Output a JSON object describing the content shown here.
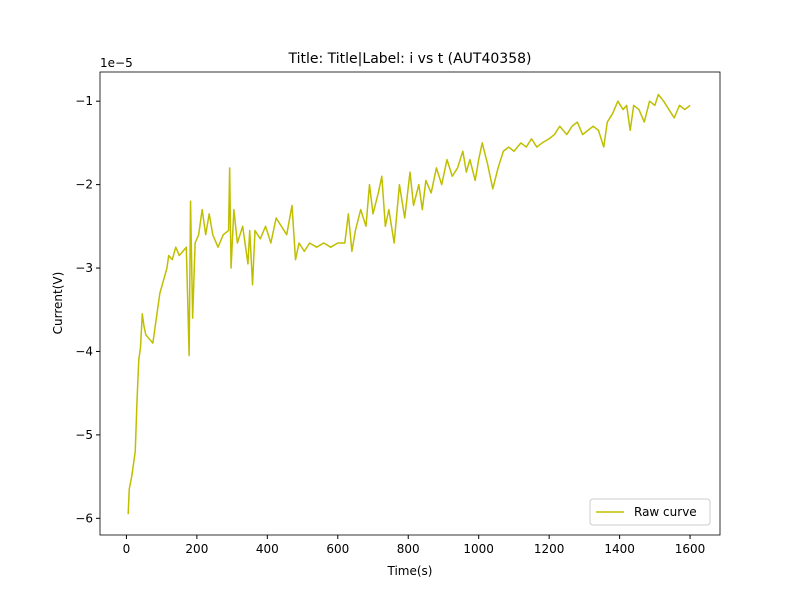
{
  "chart_data": {
    "type": "line",
    "title": "Title: Title|Label: i vs t (AUT40358)",
    "x_label": "Time(s)",
    "y_label": "Current(V)",
    "y_offset_label": "1e−5",
    "legend": "lower right",
    "xlim": [
      -75,
      1685
    ],
    "xticks": [
      0,
      200,
      400,
      600,
      800,
      1000,
      1200,
      1400,
      1600
    ],
    "ylim": [
      -6.2,
      -0.65
    ],
    "yticks": [
      {
        "value": -6,
        "label": "−6"
      },
      {
        "value": -5,
        "label": "−5"
      },
      {
        "value": -4,
        "label": "−4"
      },
      {
        "value": -3,
        "label": "−3"
      },
      {
        "value": -2,
        "label": "−2"
      },
      {
        "value": -1,
        "label": "−1"
      }
    ],
    "x": [
      5,
      8,
      15,
      25,
      30,
      35,
      40,
      45,
      50,
      55,
      65,
      75,
      85,
      95,
      105,
      115,
      120,
      130,
      140,
      150,
      160,
      170,
      178,
      182,
      188,
      195,
      205,
      215,
      225,
      235,
      245,
      260,
      275,
      290,
      293,
      297,
      305,
      315,
      330,
      345,
      350,
      358,
      365,
      380,
      395,
      410,
      425,
      440,
      455,
      470,
      480,
      490,
      505,
      520,
      540,
      560,
      580,
      600,
      620,
      630,
      640,
      650,
      665,
      680,
      690,
      700,
      715,
      725,
      735,
      745,
      760,
      775,
      790,
      805,
      815,
      830,
      840,
      850,
      865,
      880,
      895,
      910,
      925,
      940,
      955,
      965,
      975,
      990,
      1000,
      1010,
      1025,
      1040,
      1055,
      1070,
      1085,
      1100,
      1120,
      1135,
      1150,
      1165,
      1180,
      1200,
      1215,
      1230,
      1250,
      1265,
      1280,
      1295,
      1310,
      1325,
      1340,
      1355,
      1365,
      1380,
      1395,
      1410,
      1420,
      1430,
      1440,
      1455,
      1470,
      1485,
      1500,
      1510,
      1525,
      1540,
      1555,
      1570,
      1585,
      1600
    ],
    "series": [
      {
        "name": "Raw curve",
        "color": "#bfbf00",
        "values": [
          -5.95,
          -5.65,
          -5.5,
          -5.2,
          -4.6,
          -4.1,
          -3.95,
          -3.55,
          -3.7,
          -3.8,
          -3.85,
          -3.9,
          -3.6,
          -3.3,
          -3.15,
          -3.0,
          -2.85,
          -2.9,
          -2.75,
          -2.85,
          -2.8,
          -2.75,
          -4.05,
          -2.2,
          -3.6,
          -2.7,
          -2.6,
          -2.3,
          -2.6,
          -2.35,
          -2.6,
          -2.75,
          -2.6,
          -2.55,
          -1.8,
          -3.0,
          -2.3,
          -2.7,
          -2.5,
          -2.95,
          -2.55,
          -3.2,
          -2.55,
          -2.65,
          -2.5,
          -2.7,
          -2.4,
          -2.5,
          -2.6,
          -2.25,
          -2.9,
          -2.7,
          -2.8,
          -2.7,
          -2.75,
          -2.7,
          -2.75,
          -2.7,
          -2.7,
          -2.35,
          -2.8,
          -2.55,
          -2.3,
          -2.5,
          -2.0,
          -2.35,
          -2.1,
          -1.9,
          -2.5,
          -2.3,
          -2.7,
          -2.0,
          -2.4,
          -1.85,
          -2.25,
          -2.0,
          -2.3,
          -1.95,
          -2.1,
          -1.8,
          -2.0,
          -1.7,
          -1.9,
          -1.8,
          -1.6,
          -1.85,
          -1.7,
          -1.95,
          -1.7,
          -1.5,
          -1.75,
          -2.05,
          -1.8,
          -1.6,
          -1.55,
          -1.6,
          -1.5,
          -1.55,
          -1.45,
          -1.55,
          -1.5,
          -1.45,
          -1.4,
          -1.3,
          -1.4,
          -1.3,
          -1.25,
          -1.4,
          -1.35,
          -1.3,
          -1.35,
          -1.55,
          -1.25,
          -1.15,
          -1.0,
          -1.1,
          -1.05,
          -1.35,
          -1.05,
          -1.1,
          -1.25,
          -1.0,
          -1.05,
          -0.92,
          -1.0,
          -1.1,
          -1.2,
          -1.05,
          -1.1,
          -1.05
        ]
      }
    ]
  }
}
